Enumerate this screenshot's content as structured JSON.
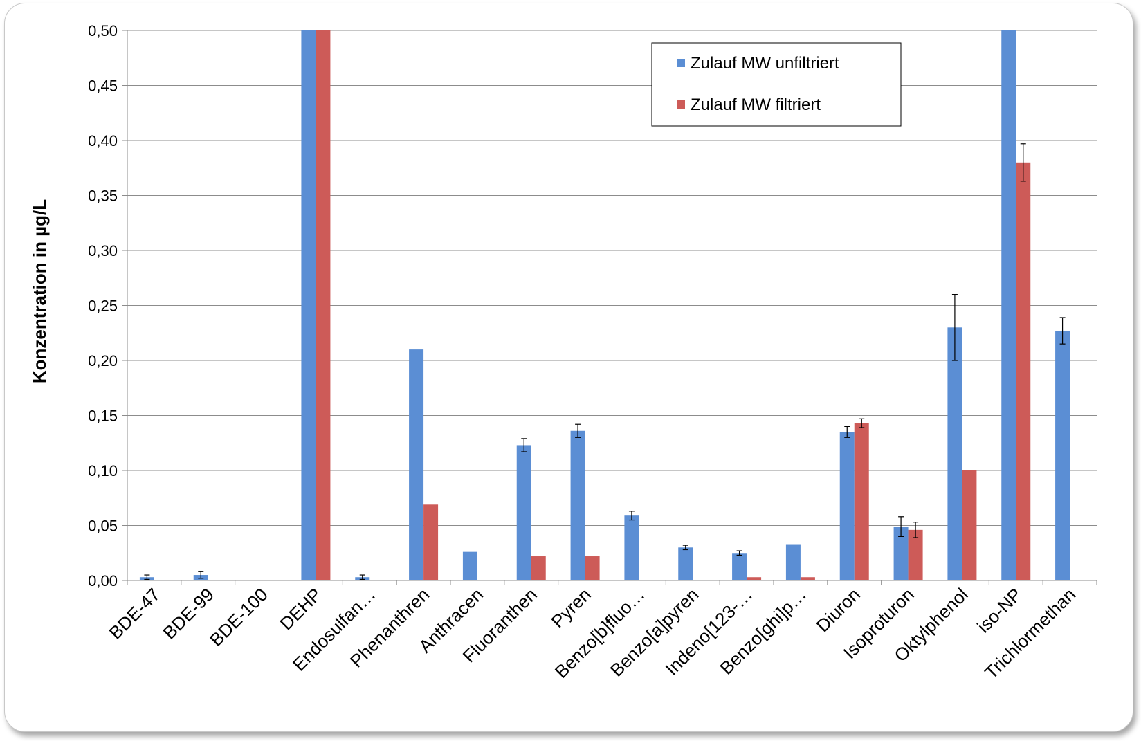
{
  "chart_data": {
    "type": "bar",
    "title": "",
    "xlabel": "",
    "ylabel": "Konzentration in µg/L",
    "ylim": [
      0,
      0.5
    ],
    "yticks": [
      "0,00",
      "0,05",
      "0,10",
      "0,15",
      "0,20",
      "0,25",
      "0,30",
      "0,35",
      "0,40",
      "0,45",
      "0,50"
    ],
    "grid": true,
    "legend_position": "top-right",
    "categories": [
      "BDE-47",
      "BDE-99",
      "BDE-100",
      "DEHP",
      "Endosulfan…",
      "Phenanthren",
      "Anthracen",
      "Fluoranthen",
      "Pyren",
      "Benzo[b]fluo…",
      "Benzo[a]pyren",
      "Indeno[123-…",
      "Benzo[ghi]p…",
      "Diuron",
      "Isoproturon",
      "Oktylphenol",
      "iso-NP",
      "Trichlormethan"
    ],
    "series": [
      {
        "name": "Zulauf MW unfiltriert",
        "color": "#5b8ed4",
        "values": [
          0.003,
          0.005,
          0.0005,
          0.5,
          0.003,
          0.21,
          0.026,
          0.123,
          0.136,
          0.059,
          0.03,
          0.025,
          0.033,
          0.135,
          0.049,
          0.23,
          0.5,
          0.227
        ],
        "errors": [
          0.002,
          0.003,
          0.0,
          0.0,
          0.002,
          0.0,
          0.0,
          0.006,
          0.006,
          0.004,
          0.002,
          0.002,
          0.0,
          0.005,
          0.009,
          0.03,
          0.0,
          0.012
        ]
      },
      {
        "name": "Zulauf MW filtriert",
        "color": "#cd5b58",
        "values": [
          0.0005,
          0.0005,
          null,
          0.5,
          null,
          0.069,
          null,
          0.022,
          0.022,
          null,
          null,
          0.003,
          0.003,
          0.143,
          0.046,
          0.1,
          0.38,
          null
        ],
        "errors": [
          0.0,
          0.0,
          0.0,
          0.0,
          0.0,
          0.0,
          0.0,
          0.0,
          0.0,
          0.0,
          0.0,
          0.0,
          0.0,
          0.004,
          0.007,
          0.0,
          0.017,
          0.0
        ]
      }
    ]
  }
}
